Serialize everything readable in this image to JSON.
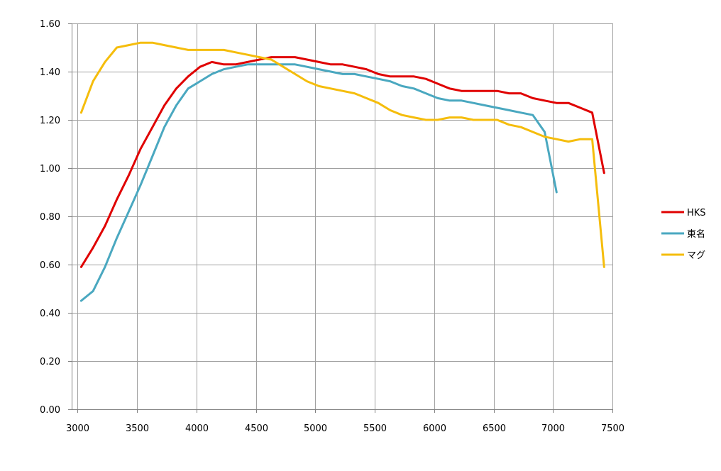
{
  "chart_data": {
    "type": "line",
    "title": "",
    "xlabel": "",
    "ylabel": "",
    "xlim": [
      2950,
      7500
    ],
    "ylim": [
      0,
      1.6
    ],
    "x_ticks": [
      "3000",
      "3500",
      "4000",
      "4500",
      "5000",
      "5500",
      "6000",
      "6500",
      "7000",
      "7500"
    ],
    "y_ticks": [
      "0.00",
      "0.20",
      "0.40",
      "0.60",
      "0.80",
      "1.00",
      "1.20",
      "1.40",
      "1.60"
    ],
    "grid": true,
    "legend_position": "right",
    "series": [
      {
        "name": "HKS",
        "color": "#e00000",
        "points": [
          [
            3030,
            0.59
          ],
          [
            3130,
            0.67
          ],
          [
            3230,
            0.76
          ],
          [
            3330,
            0.87
          ],
          [
            3430,
            0.97
          ],
          [
            3530,
            1.08
          ],
          [
            3630,
            1.17
          ],
          [
            3730,
            1.26
          ],
          [
            3830,
            1.33
          ],
          [
            3930,
            1.38
          ],
          [
            4030,
            1.42
          ],
          [
            4130,
            1.44
          ],
          [
            4230,
            1.43
          ],
          [
            4330,
            1.43
          ],
          [
            4430,
            1.44
          ],
          [
            4530,
            1.45
          ],
          [
            4630,
            1.46
          ],
          [
            4730,
            1.46
          ],
          [
            4830,
            1.46
          ],
          [
            4930,
            1.45
          ],
          [
            5030,
            1.44
          ],
          [
            5130,
            1.43
          ],
          [
            5230,
            1.43
          ],
          [
            5330,
            1.42
          ],
          [
            5430,
            1.41
          ],
          [
            5530,
            1.39
          ],
          [
            5630,
            1.38
          ],
          [
            5730,
            1.38
          ],
          [
            5830,
            1.38
          ],
          [
            5930,
            1.37
          ],
          [
            6030,
            1.35
          ],
          [
            6130,
            1.33
          ],
          [
            6230,
            1.32
          ],
          [
            6330,
            1.32
          ],
          [
            6430,
            1.32
          ],
          [
            6530,
            1.32
          ],
          [
            6630,
            1.31
          ],
          [
            6730,
            1.31
          ],
          [
            6830,
            1.29
          ],
          [
            6930,
            1.28
          ],
          [
            7030,
            1.27
          ],
          [
            7130,
            1.27
          ],
          [
            7230,
            1.25
          ],
          [
            7330,
            1.23
          ],
          [
            7430,
            0.98
          ]
        ]
      },
      {
        "name": "東名",
        "color": "#4aa8c0",
        "points": [
          [
            3030,
            0.45
          ],
          [
            3130,
            0.49
          ],
          [
            3230,
            0.59
          ],
          [
            3330,
            0.71
          ],
          [
            3430,
            0.82
          ],
          [
            3530,
            0.93
          ],
          [
            3630,
            1.05
          ],
          [
            3730,
            1.17
          ],
          [
            3830,
            1.26
          ],
          [
            3930,
            1.33
          ],
          [
            4030,
            1.36
          ],
          [
            4130,
            1.39
          ],
          [
            4230,
            1.41
          ],
          [
            4330,
            1.42
          ],
          [
            4430,
            1.43
          ],
          [
            4530,
            1.43
          ],
          [
            4630,
            1.43
          ],
          [
            4730,
            1.43
          ],
          [
            4830,
            1.43
          ],
          [
            4930,
            1.42
          ],
          [
            5030,
            1.41
          ],
          [
            5130,
            1.4
          ],
          [
            5230,
            1.39
          ],
          [
            5330,
            1.39
          ],
          [
            5430,
            1.38
          ],
          [
            5530,
            1.37
          ],
          [
            5630,
            1.36
          ],
          [
            5730,
            1.34
          ],
          [
            5830,
            1.33
          ],
          [
            5930,
            1.31
          ],
          [
            6030,
            1.29
          ],
          [
            6130,
            1.28
          ],
          [
            6230,
            1.28
          ],
          [
            6330,
            1.27
          ],
          [
            6430,
            1.26
          ],
          [
            6530,
            1.25
          ],
          [
            6630,
            1.24
          ],
          [
            6730,
            1.23
          ],
          [
            6830,
            1.22
          ],
          [
            6930,
            1.15
          ],
          [
            7030,
            0.9
          ]
        ]
      },
      {
        "name": "マグ",
        "color": "#f5bd0c",
        "points": [
          [
            3030,
            1.23
          ],
          [
            3130,
            1.36
          ],
          [
            3230,
            1.44
          ],
          [
            3330,
            1.5
          ],
          [
            3430,
            1.51
          ],
          [
            3530,
            1.52
          ],
          [
            3630,
            1.52
          ],
          [
            3730,
            1.51
          ],
          [
            3830,
            1.5
          ],
          [
            3930,
            1.49
          ],
          [
            4030,
            1.49
          ],
          [
            4130,
            1.49
          ],
          [
            4230,
            1.49
          ],
          [
            4330,
            1.48
          ],
          [
            4430,
            1.47
          ],
          [
            4530,
            1.46
          ],
          [
            4630,
            1.45
          ],
          [
            4730,
            1.42
          ],
          [
            4830,
            1.39
          ],
          [
            4930,
            1.36
          ],
          [
            5030,
            1.34
          ],
          [
            5130,
            1.33
          ],
          [
            5230,
            1.32
          ],
          [
            5330,
            1.31
          ],
          [
            5430,
            1.29
          ],
          [
            5530,
            1.27
          ],
          [
            5630,
            1.24
          ],
          [
            5730,
            1.22
          ],
          [
            5830,
            1.21
          ],
          [
            5930,
            1.2
          ],
          [
            6030,
            1.2
          ],
          [
            6130,
            1.21
          ],
          [
            6230,
            1.21
          ],
          [
            6330,
            1.2
          ],
          [
            6430,
            1.2
          ],
          [
            6530,
            1.2
          ],
          [
            6630,
            1.18
          ],
          [
            6730,
            1.17
          ],
          [
            6830,
            1.15
          ],
          [
            6930,
            1.13
          ],
          [
            7030,
            1.12
          ],
          [
            7130,
            1.11
          ],
          [
            7230,
            1.12
          ],
          [
            7330,
            1.12
          ],
          [
            7430,
            0.59
          ]
        ]
      }
    ]
  }
}
